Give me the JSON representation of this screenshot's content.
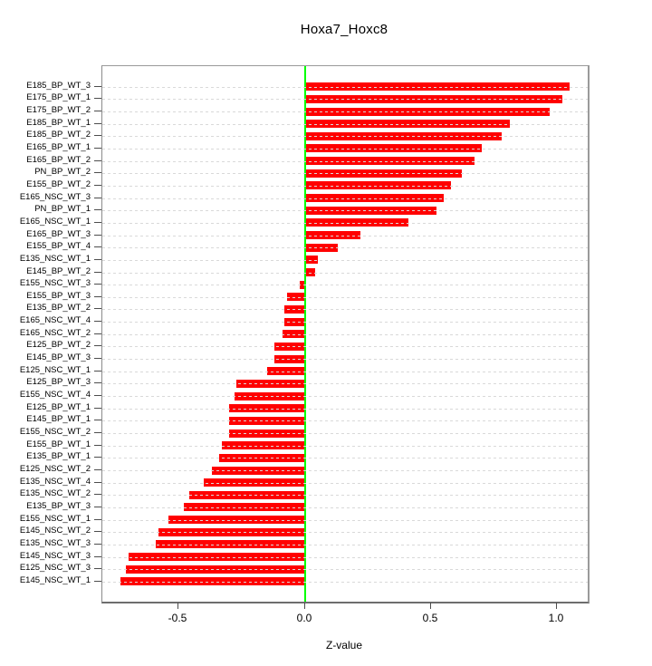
{
  "title": "Hoxa7_Hoxc8",
  "xlabel": "Z-value",
  "colors": {
    "bar": "#ff0000",
    "zero_line": "#00ff00",
    "grid": "#d9d9d9",
    "axis": "#8c8c8c",
    "text": "#000000"
  },
  "chart_data": {
    "type": "bar",
    "orientation": "horizontal",
    "title": "Hoxa7_Hoxc8",
    "xlabel": "Z-value",
    "xlim": [
      -0.803,
      1.122
    ],
    "grid": true,
    "zero_line": true,
    "x_ticks": {
      "values": [
        -0.5,
        0.0,
        0.5,
        1.0
      ],
      "labels": [
        "-0.5",
        "0.0",
        "0.5",
        "1.0"
      ]
    },
    "categories": [
      "E185_BP_WT_3",
      "E175_BP_WT_1",
      "E175_BP_WT_2",
      "E185_BP_WT_1",
      "E185_BP_WT_2",
      "E165_BP_WT_1",
      "E165_BP_WT_2",
      "PN_BP_WT_2",
      "E155_BP_WT_2",
      "E165_NSC_WT_3",
      "PN_BP_WT_1",
      "E165_NSC_WT_1",
      "E165_BP_WT_3",
      "E155_BP_WT_4",
      "E135_NSC_WT_1",
      "E145_BP_WT_2",
      "E155_NSC_WT_3",
      "E155_BP_WT_3",
      "E135_BP_WT_2",
      "E165_NSC_WT_4",
      "E165_NSC_WT_2",
      "E125_BP_WT_2",
      "E145_BP_WT_3",
      "E125_NSC_WT_1",
      "E125_BP_WT_3",
      "E155_NSC_WT_4",
      "E125_BP_WT_1",
      "E145_BP_WT_1",
      "E155_NSC_WT_2",
      "E155_BP_WT_1",
      "E135_BP_WT_1",
      "E125_NSC_WT_2",
      "E135_NSC_WT_4",
      "E135_NSC_WT_2",
      "E135_BP_WT_3",
      "E155_NSC_WT_1",
      "E145_NSC_WT_2",
      "E135_NSC_WT_3",
      "E145_NSC_WT_3",
      "E125_NSC_WT_3",
      "E145_NSC_WT_1"
    ],
    "values": [
      1.05,
      1.02,
      0.97,
      0.81,
      0.78,
      0.7,
      0.67,
      0.62,
      0.58,
      0.55,
      0.52,
      0.41,
      0.22,
      0.13,
      0.05,
      0.04,
      -0.02,
      -0.07,
      -0.08,
      -0.08,
      -0.09,
      -0.12,
      -0.12,
      -0.15,
      -0.27,
      -0.28,
      -0.3,
      -0.3,
      -0.3,
      -0.33,
      -0.34,
      -0.37,
      -0.4,
      -0.46,
      -0.48,
      -0.54,
      -0.58,
      -0.59,
      -0.7,
      -0.71,
      -0.73
    ]
  }
}
